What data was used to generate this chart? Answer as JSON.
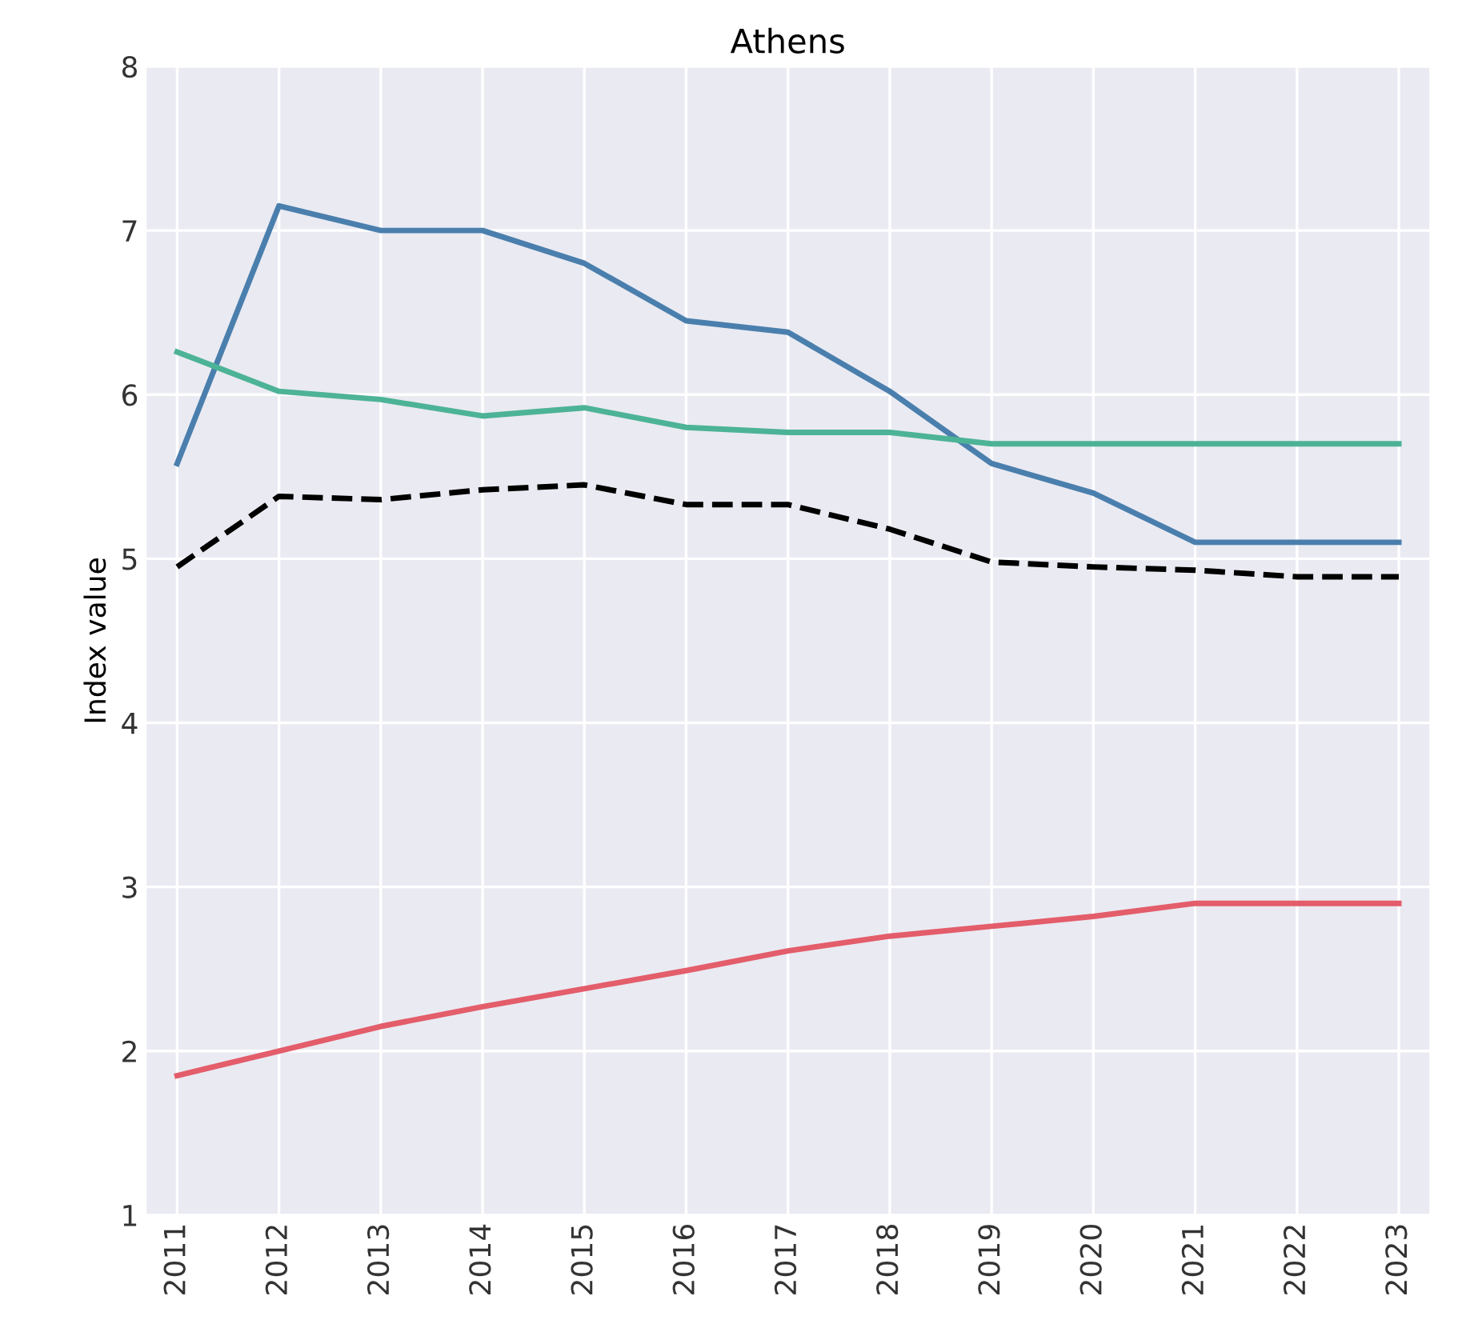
{
  "chart_data": {
    "type": "line",
    "title": "Athens",
    "ylabel": "Index value",
    "categories": [
      "2011",
      "2012",
      "2013",
      "2014",
      "2015",
      "2016",
      "2017",
      "2018",
      "2019",
      "2020",
      "2021",
      "2022",
      "2023"
    ],
    "series": [
      {
        "color": "#4a7fad",
        "values": [
          5.58,
          7.15,
          7.0,
          7.0,
          6.8,
          6.45,
          6.38,
          6.02,
          5.58,
          5.4,
          5.1,
          5.1,
          5.1
        ]
      },
      {
        "color": "#4db396",
        "values": [
          6.26,
          6.02,
          5.97,
          5.87,
          5.92,
          5.8,
          5.77,
          5.77,
          5.7,
          5.7,
          5.7,
          5.7,
          5.7
        ]
      },
      {
        "color": "#000000",
        "line_style": "dashed",
        "values": [
          4.95,
          5.38,
          5.36,
          5.42,
          5.45,
          5.33,
          5.33,
          5.18,
          4.98,
          4.95,
          4.93,
          4.89,
          4.89
        ]
      },
      {
        "color": "#e35d6a",
        "values": [
          1.85,
          2.0,
          2.15,
          2.27,
          2.38,
          2.49,
          2.61,
          2.7,
          2.76,
          2.82,
          2.9,
          2.9,
          2.9
        ]
      }
    ],
    "ylim": [
      1,
      8
    ],
    "yticks": [
      1,
      2,
      3,
      4,
      5,
      6,
      7,
      8
    ],
    "grid": true
  }
}
